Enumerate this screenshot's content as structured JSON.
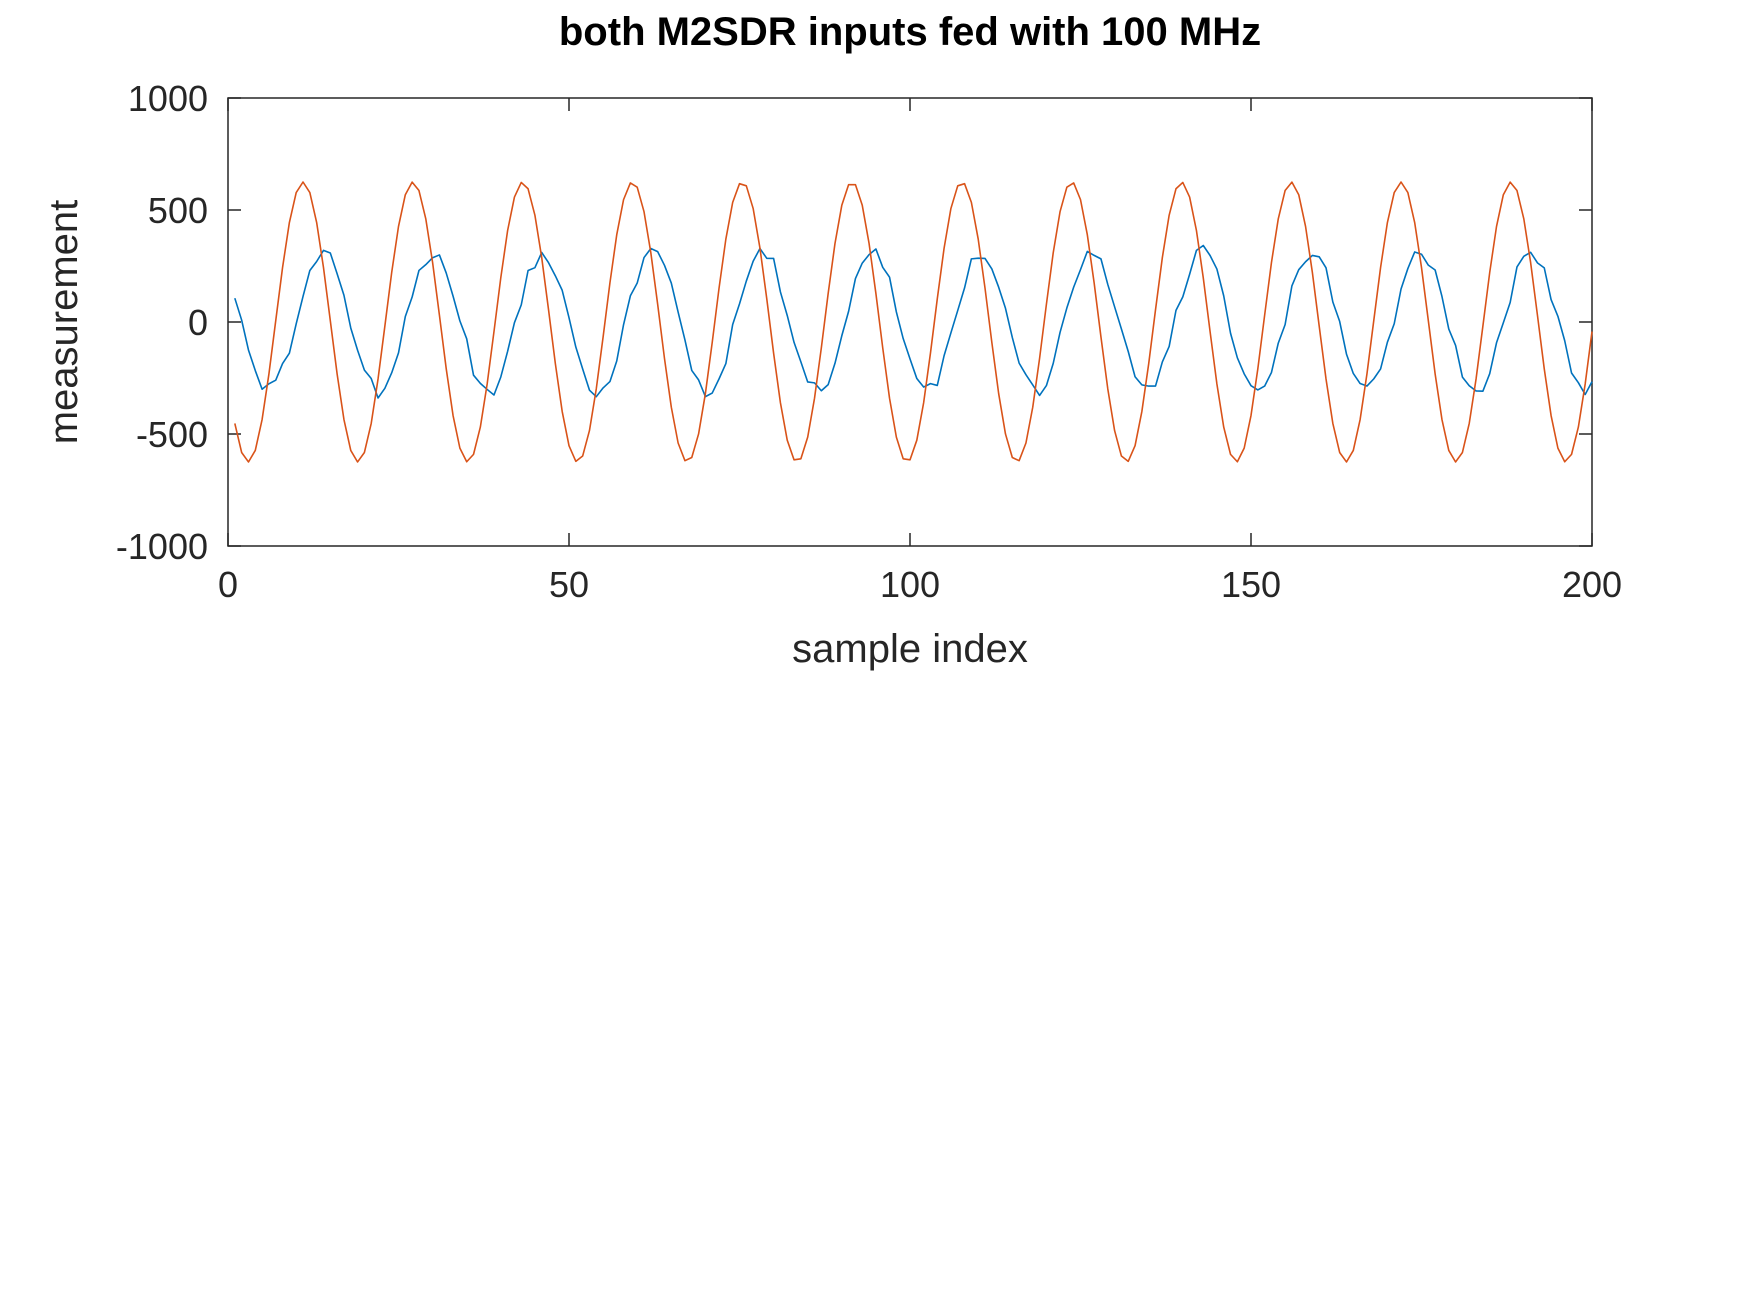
{
  "chart_data": {
    "type": "line",
    "title": "both M2SDR inputs fed with 100 MHz",
    "xlabel": "sample index",
    "ylabel": "measurement",
    "xlim": [
      0,
      200
    ],
    "ylim": [
      -1000,
      1000
    ],
    "x_ticks": [
      0,
      50,
      100,
      150,
      200
    ],
    "y_ticks": [
      -1000,
      -500,
      0,
      500,
      1000
    ],
    "x_tick_labels": [
      "0",
      "50",
      "100",
      "150",
      "200"
    ],
    "y_tick_labels": [
      "-1000",
      "-500",
      "0",
      "500",
      "1000"
    ],
    "grid": false,
    "legend": "none",
    "series": [
      {
        "color": "#0072bd",
        "x_start": 1,
        "x_end": 200,
        "amplitude": 310,
        "period": 16.1,
        "phase_x": 14,
        "noise_amplitude": 35
      },
      {
        "color": "#d95319",
        "x_start": 1,
        "x_end": 200,
        "amplitude": 625,
        "period": 16.1,
        "phase_x": 11,
        "noise_amplitude": 0
      }
    ]
  }
}
